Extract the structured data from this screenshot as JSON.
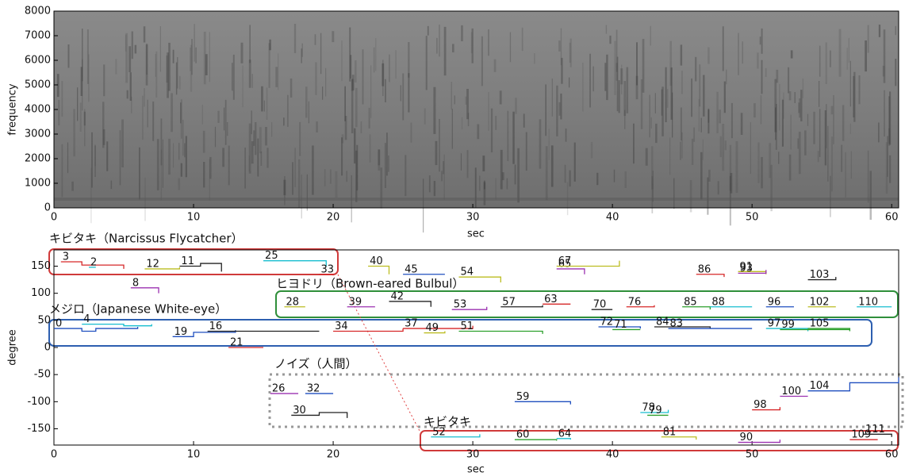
{
  "chart_data": [
    {
      "type": "spectrogram",
      "xlabel": "sec",
      "ylabel": "frequency",
      "xlim": [
        0,
        60.5
      ],
      "xticks": [
        0,
        10,
        20,
        30,
        40,
        50,
        60
      ],
      "ylim": [
        0,
        8000
      ],
      "yticks": [
        0,
        1000,
        2000,
        3000,
        4000,
        5000,
        6000,
        7000,
        8000
      ]
    },
    {
      "type": "line",
      "xlabel": "sec",
      "ylabel": "degree",
      "xlim": [
        0,
        60.5
      ],
      "xticks": [
        0,
        10,
        20,
        30,
        40,
        50,
        60
      ],
      "ylim": [
        -180,
        180
      ],
      "yticks": [
        -150,
        -100,
        -50,
        0,
        50,
        100,
        150
      ],
      "annotations": [
        "キビタキ（Narcissus Flycatcher）",
        "ヒヨドリ（Brown-eared Bulbul）",
        "メジロ（Japanese White-eye）",
        "ノイズ（人間）",
        "キビタキ"
      ],
      "series": [
        {
          "name": "3",
          "color": "#d62728",
          "x": [
            0.5,
            2,
            5
          ],
          "values": [
            158,
            152,
            145
          ]
        },
        {
          "name": "2",
          "color": "#17becf",
          "x": [
            2.5,
            3
          ],
          "values": [
            148,
            148
          ]
        },
        {
          "name": "4",
          "color": "#17becf",
          "x": [
            2,
            5,
            7
          ],
          "values": [
            43,
            40,
            43
          ]
        },
        {
          "name": "0",
          "color": "#1f4fbf",
          "x": [
            0,
            2,
            3,
            6
          ],
          "values": [
            35,
            30,
            35,
            38
          ]
        },
        {
          "name": "8",
          "color": "#9b30b0",
          "x": [
            5.5,
            7.5
          ],
          "values": [
            110,
            100
          ]
        },
        {
          "name": "12",
          "color": "#bcbd22",
          "x": [
            6.5,
            9
          ],
          "values": [
            145,
            148
          ]
        },
        {
          "name": "11",
          "color": "#222222",
          "x": [
            9,
            10.5,
            12
          ],
          "values": [
            150,
            155,
            140
          ]
        },
        {
          "name": "19",
          "color": "#1f4fbf",
          "x": [
            8.5,
            10,
            13
          ],
          "values": [
            20,
            28,
            32
          ]
        },
        {
          "name": "21",
          "color": "#d62728",
          "x": [
            12.5,
            15
          ],
          "values": [
            0,
            0
          ]
        },
        {
          "name": "16",
          "color": "#222222",
          "x": [
            11,
            19
          ],
          "values": [
            30,
            30
          ]
        },
        {
          "name": "25",
          "color": "#17becf",
          "x": [
            15,
            19.5
          ],
          "values": [
            160,
            150
          ]
        },
        {
          "name": "28",
          "color": "#bcbd22",
          "x": [
            16.5,
            18
          ],
          "values": [
            75,
            75
          ]
        },
        {
          "name": "26",
          "color": "#9b30b0",
          "x": [
            15.5,
            17.5
          ],
          "values": [
            -85,
            -85
          ]
        },
        {
          "name": "32",
          "color": "#1f4fbf",
          "x": [
            18,
            20
          ],
          "values": [
            -85,
            -85
          ]
        },
        {
          "name": "30",
          "color": "#222222",
          "x": [
            17,
            19,
            21
          ],
          "values": [
            -125,
            -120,
            -130
          ]
        },
        {
          "name": "33",
          "color": "#d62728",
          "x": [
            19,
            20
          ],
          "values": [
            135,
            133
          ]
        },
        {
          "name": "34",
          "color": "#d62728",
          "x": [
            20,
            25
          ],
          "values": [
            30,
            35
          ]
        },
        {
          "name": "39",
          "color": "#9b30b0",
          "x": [
            21,
            23
          ],
          "values": [
            75,
            75
          ]
        },
        {
          "name": "37",
          "color": "#d62728",
          "x": [
            25,
            30
          ],
          "values": [
            35,
            40
          ]
        },
        {
          "name": "40",
          "color": "#bcbd22",
          "x": [
            22.5,
            24
          ],
          "values": [
            150,
            135
          ]
        },
        {
          "name": "42",
          "color": "#222222",
          "x": [
            24,
            27
          ],
          "values": [
            85,
            75
          ]
        },
        {
          "name": "45",
          "color": "#1f4fbf",
          "x": [
            25,
            28
          ],
          "values": [
            135,
            135
          ]
        },
        {
          "name": "49",
          "color": "#bcbd22",
          "x": [
            26.5,
            28
          ],
          "values": [
            27,
            30
          ]
        },
        {
          "name": "51",
          "color": "#2ca02c",
          "x": [
            29,
            35
          ],
          "values": [
            30,
            25
          ]
        },
        {
          "name": "53",
          "color": "#9b30b0",
          "x": [
            28.5,
            31
          ],
          "values": [
            70,
            75
          ]
        },
        {
          "name": "54",
          "color": "#bcbd22",
          "x": [
            29,
            32
          ],
          "values": [
            130,
            120
          ]
        },
        {
          "name": "52",
          "color": "#17becf",
          "x": [
            27,
            30.5
          ],
          "values": [
            -165,
            -160
          ]
        },
        {
          "name": "57",
          "color": "#222222",
          "x": [
            32,
            35
          ],
          "values": [
            75,
            78
          ]
        },
        {
          "name": "59",
          "color": "#1f4fbf",
          "x": [
            33,
            37
          ],
          "values": [
            -100,
            -105
          ]
        },
        {
          "name": "60",
          "color": "#2ca02c",
          "x": [
            33,
            36
          ],
          "values": [
            -170,
            -172
          ]
        },
        {
          "name": "64",
          "color": "#17becf",
          "x": [
            36,
            37
          ],
          "values": [
            -168,
            -170
          ]
        },
        {
          "name": "63",
          "color": "#d62728",
          "x": [
            35,
            37
          ],
          "values": [
            80,
            80
          ]
        },
        {
          "name": "65",
          "color": "#9b30b0",
          "x": [
            36,
            38
          ],
          "values": [
            145,
            135
          ]
        },
        {
          "name": "67",
          "color": "#bcbd22",
          "x": [
            36,
            40.5
          ],
          "values": [
            150,
            160
          ]
        },
        {
          "name": "70",
          "color": "#222222",
          "x": [
            38.5,
            40
          ],
          "values": [
            70,
            70
          ]
        },
        {
          "name": "72",
          "color": "#1f4fbf",
          "x": [
            39,
            42
          ],
          "values": [
            38,
            35
          ]
        },
        {
          "name": "71",
          "color": "#2ca02c",
          "x": [
            40,
            42
          ],
          "values": [
            33,
            33
          ]
        },
        {
          "name": "76",
          "color": "#d62728",
          "x": [
            41,
            43
          ],
          "values": [
            75,
            78
          ]
        },
        {
          "name": "78",
          "color": "#17becf",
          "x": [
            42,
            44
          ],
          "values": [
            -120,
            -115
          ]
        },
        {
          "name": "79",
          "color": "#2ca02c",
          "x": [
            42.5,
            44
          ],
          "values": [
            -125,
            -125
          ]
        },
        {
          "name": "81",
          "color": "#bcbd22",
          "x": [
            43.5,
            46
          ],
          "values": [
            -165,
            -170
          ]
        },
        {
          "name": "84",
          "color": "#222222",
          "x": [
            43,
            47
          ],
          "values": [
            38,
            35
          ]
        },
        {
          "name": "85",
          "color": "#2ca02c",
          "x": [
            45,
            47
          ],
          "values": [
            75,
            70
          ]
        },
        {
          "name": "83",
          "color": "#1f4fbf",
          "x": [
            44,
            50
          ],
          "values": [
            35,
            35
          ]
        },
        {
          "name": "86",
          "color": "#d62728",
          "x": [
            46,
            48
          ],
          "values": [
            135,
            130
          ]
        },
        {
          "name": "88",
          "color": "#17becf",
          "x": [
            47,
            50
          ],
          "values": [
            75,
            75
          ]
        },
        {
          "name": "90",
          "color": "#9b30b0",
          "x": [
            49,
            52
          ],
          "values": [
            -175,
            -170
          ]
        },
        {
          "name": "91",
          "color": "#bcbd22",
          "x": [
            49,
            51
          ],
          "values": [
            140,
            135
          ]
        },
        {
          "name": "93",
          "color": "#9b30b0",
          "x": [
            49,
            51
          ],
          "values": [
            137,
            143
          ]
        },
        {
          "name": "96",
          "color": "#1f4fbf",
          "x": [
            51,
            53
          ],
          "values": [
            75,
            75
          ]
        },
        {
          "name": "97",
          "color": "#17becf",
          "x": [
            51,
            54
          ],
          "values": [
            35,
            30
          ]
        },
        {
          "name": "99",
          "color": "#2ca02c",
          "x": [
            52,
            57
          ],
          "values": [
            33,
            33
          ]
        },
        {
          "name": "98",
          "color": "#d62728",
          "x": [
            50,
            52
          ],
          "values": [
            -115,
            -110
          ]
        },
        {
          "name": "100",
          "color": "#9b30b0",
          "x": [
            52,
            54
          ],
          "values": [
            -90,
            -90
          ]
        },
        {
          "name": "102",
          "color": "#bcbd22",
          "x": [
            54,
            56
          ],
          "values": [
            75,
            75
          ]
        },
        {
          "name": "103",
          "color": "#222222",
          "x": [
            54,
            56
          ],
          "values": [
            125,
            130
          ]
        },
        {
          "name": "104",
          "color": "#1f4fbf",
          "x": [
            54,
            57,
            60.5
          ],
          "values": [
            -80,
            -65,
            -55
          ]
        },
        {
          "name": "105",
          "color": "#2ca02c",
          "x": [
            54,
            57
          ],
          "values": [
            35,
            30
          ]
        },
        {
          "name": "109",
          "color": "#d62728",
          "x": [
            57,
            59
          ],
          "values": [
            -170,
            -170
          ]
        },
        {
          "name": "110",
          "color": "#17becf",
          "x": [
            57.5,
            60
          ],
          "values": [
            75,
            75
          ]
        },
        {
          "name": "111",
          "color": "#222222",
          "x": [
            58,
            60
          ],
          "values": [
            -160,
            -165
          ]
        }
      ]
    }
  ]
}
